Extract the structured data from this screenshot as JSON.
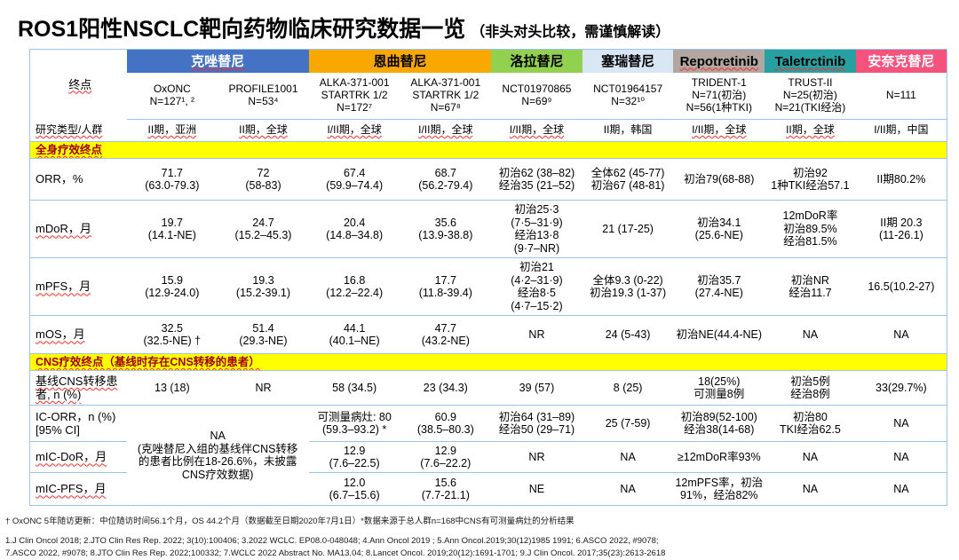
{
  "title": {
    "main": "ROS1阳性NSCLC靶向药物临床研究数据一览",
    "note": "（非头对头比较，需谨慎解读）"
  },
  "header": {
    "endpoint_label": "终点",
    "drugs": [
      {
        "name": "克唑替尼",
        "bg": "#4472C4",
        "fg": "#FFFFFF"
      },
      {
        "name": "恩曲替尼",
        "bg": "#F9A800",
        "fg": "#000000"
      },
      {
        "name": "洛拉替尼",
        "bg": "#92D050",
        "fg": "#000000"
      },
      {
        "name": "塞瑞替尼",
        "bg": "#D9E7F5",
        "fg": "#000000"
      },
      {
        "name": "Repotretinib",
        "bg": "#B2A7A0",
        "fg": "#000000"
      },
      {
        "name": "Taletrctinib",
        "bg": "#27A0A2",
        "fg": "#000000"
      },
      {
        "name": "安奈克替尼",
        "bg": "#F5537E",
        "fg": "#FFFFFF"
      }
    ],
    "studies": [
      "OxONC\nN=127¹, ²",
      "PROFILE1001\nN=53⁴",
      "ALKA-371-001\nSTARTRK 1/2\nN=172⁷",
      "ALKA-371-001\nSTARTRK 1/2\nN=67⁸",
      "NCT01970865\nN=69⁹",
      "NCT01964157\nN=32¹⁰",
      "TRIDENT-1\nN=71(初治)\nN=56(1种TKI)",
      "TRUST-II\nN=25(初治)\nN=21(TKI经治)",
      "N=111"
    ]
  },
  "sections": {
    "systemic": "全身疗效终点",
    "cns": "CNS疗效终点（基线时存在CNS转移的患者）"
  },
  "rows": {
    "study_type": {
      "label": "研究类型/人群",
      "values": [
        "II期，亚洲",
        "II期，全球",
        "I/II期，全球",
        "I/II期，全球",
        "I/II期，全球",
        "II期，韩国",
        "I/II期，全球",
        "II期，全球",
        "I/II期，中国"
      ]
    },
    "orr": {
      "label": "ORR，%",
      "values": [
        "71.7\n(63.0-79.3)",
        "72\n(58-83)",
        "67.4\n(59.9–74.4)",
        "68.7\n(56.2-79.4)",
        "初治62 (38–82)\n经治35 (21–52)",
        "全体62 (45-77)\n初治67 (48-81)",
        "初治79(68-88)",
        "初治92\n1种TKI经治57.1",
        "II期80.2%"
      ]
    },
    "mdor": {
      "label": "mDoR，月",
      "values": [
        "19.7\n(14.1-NE)",
        "24.7\n(15.2–45.3)",
        "20.4\n(14.8–34.8)",
        "35.6\n(13.9-38.8)",
        "初治25·3\n(7·5–31·9)\n经治13·8\n(9·7–NR)",
        "21 (17-25)",
        "初治34.1\n(25.6-NE)",
        "12mDoR率\n初治89.5%\n经治81.5%",
        "II期 20.3\n(11-26.1)"
      ]
    },
    "mpfs": {
      "label": "mPFS，月",
      "values": [
        "15.9\n(12.9-24.0)",
        "19.3\n(15.2-39.1)",
        "16.8\n(12.2–22.4)",
        "17.7\n(11.8-39.4)",
        "初治21\n(4·2–31·9)\n经治8·5\n(4·7–15·2)",
        "全体9.3 (0-22)\n初治19.3 (1-37)",
        "初治35.7\n(27.4-NE)",
        "初治NR\n经治11.7",
        "16.5(10.2-27)"
      ]
    },
    "mos": {
      "label": "mOS，月",
      "values": [
        "32.5\n(32.5-NE) †",
        "51.4\n(29.3-NE)",
        "44.1\n(40.1–NE)",
        "47.7\n(43.2-NE)",
        "NR",
        "24 (5-43)",
        "初治NE(44.4-NE)",
        "NA",
        "NA"
      ]
    },
    "cns_baseline": {
      "label": "基线CNS转移患者, n (%)",
      "values": [
        "13 (18)",
        "NR",
        "58 (34.5)",
        "23 (34.3)",
        "39 (57)",
        "8 (25)",
        "18(25%)\n可测量8例",
        "初治5例\n经治8例",
        "33(29.7%)"
      ]
    },
    "ic_orr": {
      "label": "IC-ORR，n (%)\n[95% CI]",
      "values": [
        "可测量病灶: 80\n(59.3–93.2) *",
        "60.9\n(38.5–80.3)",
        "初治64 (31–89)\n经治50 (29–71)",
        "25 (7-59)",
        "初治89(52-100)\n经治38(14-68)",
        "初治80\nTKI经治62.5",
        "NA"
      ]
    },
    "mic_dor": {
      "label": "mIC-DoR，月",
      "values": [
        "12.9\n(7.6–22.5)",
        "12.9\n(7.6–22.2)",
        "NR",
        "NA",
        "≥12mDoR率93%",
        "NA",
        "NA"
      ]
    },
    "mic_pfs": {
      "label": "mIC-PFS，月",
      "values": [
        "12.0\n(6.7–15.6)",
        "15.6\n(7.7-21.1)",
        "NE",
        "NA",
        "12mPFS率，初治\n91%，经治82%",
        "NA",
        "NA"
      ]
    }
  },
  "cns_na_note": "NA\n(克唑替尼入组的基线伴CNS转移\n的患者比例在18-26.6%，未披露\nCNS疗效数据)",
  "footnotes": {
    "line1": "† OxONC 5年随访更新：中位随访时间56.1个月，OS 44.2个月（数据截至日期2020年7月1日）*数据来源于总人群n=168中CNS有可测量病灶的分析结果",
    "ref1": "1.J Clin Oncol 2018; 2.JTO Clin Res Rep. 2022; 3(10):100406; 3.2022 WCLC. EP08.0-048048; 4.Ann Oncol 2019 ; 5.Ann Oncol.2019;30(12)1985 1991; 6.ASCO 2022, #9078;",
    "ref2": "7.ASCO 2022, #9078; 8.JTO Clin Res Rep. 2022;100332; 7.WCLC 2022 Abstract No. MA13.04; 8.Lancet Oncol. 2019;20(12):1691-1701; 9.J Clin Oncol. 2017;35(23):2613-2618"
  }
}
